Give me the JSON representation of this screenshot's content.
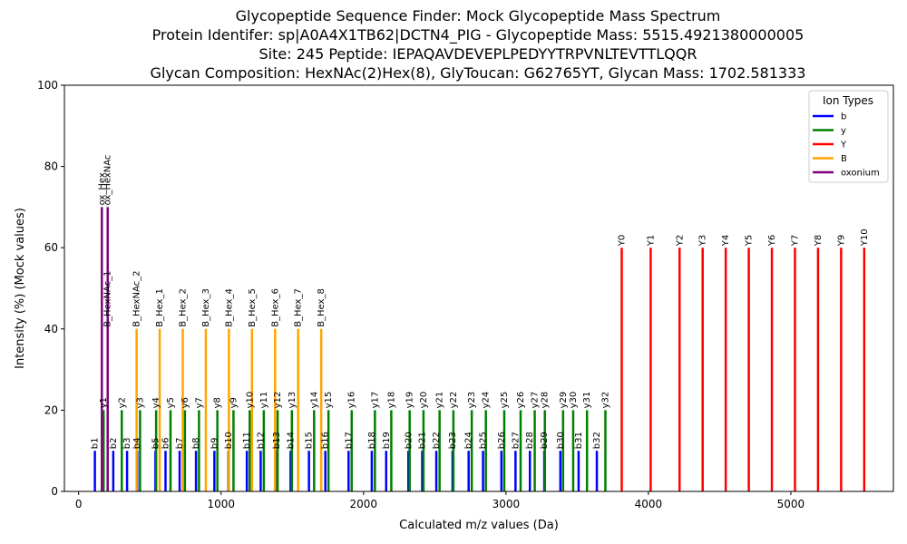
{
  "chart_data": {
    "type": "bar",
    "title_lines": [
      "Glycopeptide Sequence Finder: Mock Glycopeptide Mass Spectrum",
      "Protein Identifer: sp|A0A4X1TB62|DCTN4_PIG - Glycopeptide Mass: 5515.4921380000005",
      "Site: 245 Peptide: IEPAQAVDEVEPLPEDYYTRPVNLTEVTTLQQR",
      "Glycan Composition: HexNAc(2)Hex(8), GlyToucan: G62765YT, Glycan Mass: 1702.581333"
    ],
    "xlabel": "Calculated m/z values (Da)",
    "ylabel": "Intensity (%) (Mock values)",
    "xlim": [
      -100,
      5720
    ],
    "ylim": [
      0,
      100
    ],
    "xticks": [
      0,
      1000,
      2000,
      3000,
      4000,
      5000
    ],
    "yticks": [
      0,
      20,
      40,
      60,
      80,
      100
    ],
    "legend": {
      "title": "Ion Types",
      "position": "top-right",
      "entries": [
        {
          "name": "b",
          "color": "#0000ff"
        },
        {
          "name": "y",
          "color": "#008000"
        },
        {
          "name": "Y",
          "color": "#ff0000"
        },
        {
          "name": "B",
          "color": "#ffa500"
        },
        {
          "name": "oxonium",
          "color": "#800080"
        }
      ]
    },
    "series": [
      {
        "name": "b",
        "color": "#0000ff",
        "intensity": 10,
        "peaks": [
          {
            "label": "b1",
            "x": 114
          },
          {
            "label": "b2",
            "x": 243
          },
          {
            "label": "b3",
            "x": 340
          },
          {
            "label": "b4",
            "x": 411
          },
          {
            "label": "b5",
            "x": 539
          },
          {
            "label": "b6",
            "x": 610
          },
          {
            "label": "b7",
            "x": 709
          },
          {
            "label": "b8",
            "x": 824
          },
          {
            "label": "b9",
            "x": 953
          },
          {
            "label": "b10",
            "x": 1052
          },
          {
            "label": "b11",
            "x": 1181
          },
          {
            "label": "b12",
            "x": 1278
          },
          {
            "label": "b13",
            "x": 1391
          },
          {
            "label": "b14",
            "x": 1488
          },
          {
            "label": "b15",
            "x": 1617
          },
          {
            "label": "b16",
            "x": 1732
          },
          {
            "label": "b17",
            "x": 1895
          },
          {
            "label": "b18",
            "x": 2058
          },
          {
            "label": "b19",
            "x": 2159
          },
          {
            "label": "b20",
            "x": 2315
          },
          {
            "label": "b21",
            "x": 2412
          },
          {
            "label": "b22",
            "x": 2511
          },
          {
            "label": "b23",
            "x": 2625
          },
          {
            "label": "b24",
            "x": 2738
          },
          {
            "label": "b25",
            "x": 2839
          },
          {
            "label": "b26",
            "x": 2968
          },
          {
            "label": "b27",
            "x": 3067
          },
          {
            "label": "b28",
            "x": 3168
          },
          {
            "label": "b29",
            "x": 3269
          },
          {
            "label": "b30",
            "x": 3382
          },
          {
            "label": "b31",
            "x": 3510
          },
          {
            "label": "b32",
            "x": 3638
          }
        ]
      },
      {
        "name": "y",
        "color": "#008000",
        "intensity": 20,
        "peaks": [
          {
            "label": "y1",
            "x": 175
          },
          {
            "label": "y2",
            "x": 303
          },
          {
            "label": "y3",
            "x": 431
          },
          {
            "label": "y4",
            "x": 544
          },
          {
            "label": "y5",
            "x": 645
          },
          {
            "label": "y6",
            "x": 746
          },
          {
            "label": "y7",
            "x": 845
          },
          {
            "label": "y8",
            "x": 974
          },
          {
            "label": "y9",
            "x": 1087
          },
          {
            "label": "y10",
            "x": 1201
          },
          {
            "label": "y11",
            "x": 1300
          },
          {
            "label": "y12",
            "x": 1397
          },
          {
            "label": "y13",
            "x": 1497
          },
          {
            "label": "y14",
            "x": 1653
          },
          {
            "label": "y15",
            "x": 1754
          },
          {
            "label": "y16",
            "x": 1917
          },
          {
            "label": "y17",
            "x": 2080
          },
          {
            "label": "y18",
            "x": 2195
          },
          {
            "label": "y19",
            "x": 2324
          },
          {
            "label": "y20",
            "x": 2421
          },
          {
            "label": "y21",
            "x": 2534
          },
          {
            "label": "y22",
            "x": 2631
          },
          {
            "label": "y23",
            "x": 2760
          },
          {
            "label": "y24",
            "x": 2859
          },
          {
            "label": "y25",
            "x": 2988
          },
          {
            "label": "y26",
            "x": 3103
          },
          {
            "label": "y27",
            "x": 3202
          },
          {
            "label": "y28",
            "x": 3273
          },
          {
            "label": "y29",
            "x": 3401
          },
          {
            "label": "y30",
            "x": 3472
          },
          {
            "label": "y31",
            "x": 3569
          },
          {
            "label": "y32",
            "x": 3698
          }
        ]
      },
      {
        "name": "Y",
        "color": "#ff0000",
        "intensity": 60,
        "peaks": [
          {
            "label": "Y0",
            "x": 3813
          },
          {
            "label": "Y1",
            "x": 4016
          },
          {
            "label": "Y2",
            "x": 4219
          },
          {
            "label": "Y3",
            "x": 4381
          },
          {
            "label": "Y4",
            "x": 4543
          },
          {
            "label": "Y5",
            "x": 4705
          },
          {
            "label": "Y6",
            "x": 4867
          },
          {
            "label": "Y7",
            "x": 5029
          },
          {
            "label": "Y8",
            "x": 5191
          },
          {
            "label": "Y9",
            "x": 5353
          },
          {
            "label": "Y10",
            "x": 5515
          }
        ]
      },
      {
        "name": "B",
        "color": "#ffa500",
        "intensity": 40,
        "peaks": [
          {
            "label": "B_HexNAc_1",
            "x": 204
          },
          {
            "label": "B_HexNAc_2",
            "x": 407
          },
          {
            "label": "B_Hex_1",
            "x": 569
          },
          {
            "label": "B_Hex_2",
            "x": 731
          },
          {
            "label": "B_Hex_3",
            "x": 893
          },
          {
            "label": "B_Hex_4",
            "x": 1055
          },
          {
            "label": "B_Hex_5",
            "x": 1217
          },
          {
            "label": "B_Hex_6",
            "x": 1379
          },
          {
            "label": "B_Hex_7",
            "x": 1541
          },
          {
            "label": "B_Hex_8",
            "x": 1703
          }
        ]
      },
      {
        "name": "oxonium",
        "color": "#800080",
        "intensity": 70,
        "peaks": [
          {
            "label": "ox_Hex",
            "x": 163
          },
          {
            "label": "ox_HexNAc",
            "x": 204
          }
        ]
      }
    ]
  }
}
